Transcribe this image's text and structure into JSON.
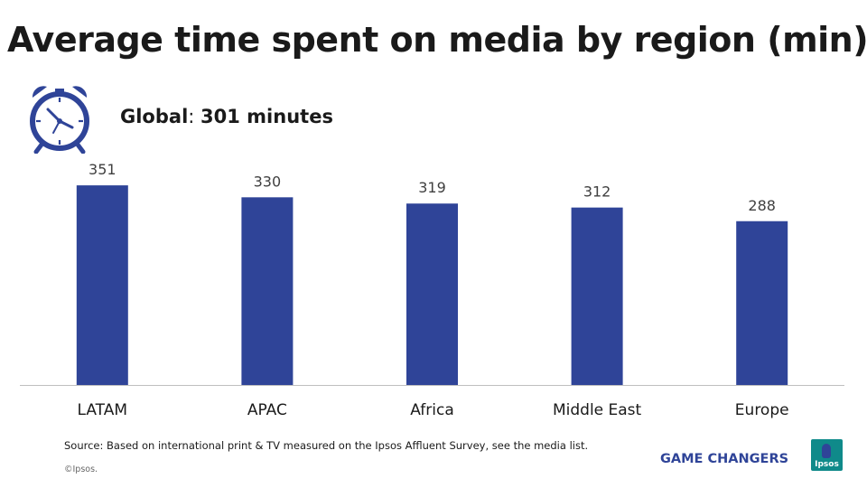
{
  "title": "Average time spent on media by region (min)",
  "global": {
    "label": "Global",
    "value": "301 minutes"
  },
  "footnote": "Source: Based on international print & TV measured on the Ipsos Affluent Survey, see the media list.",
  "copyright": "©Ipsos.",
  "brand": {
    "tagline": "GAME CHANGERS",
    "logo_text": "Ipsos"
  },
  "colors": {
    "bar": "#2f4498",
    "axis": "#bfbfbf",
    "icon": "#2f4498",
    "tagline": "#2f4498",
    "logo_bg": "#0f8a8a"
  },
  "icon": "alarm-clock-icon",
  "chart_data": {
    "type": "bar",
    "categories": [
      "LATAM",
      "APAC",
      "Africa",
      "Middle East",
      "Europe"
    ],
    "values": [
      351,
      330,
      319,
      312,
      288
    ],
    "title": "",
    "xlabel": "",
    "ylabel": "",
    "ylim": [
      0,
      375
    ],
    "grid": false,
    "data_labels": true
  }
}
